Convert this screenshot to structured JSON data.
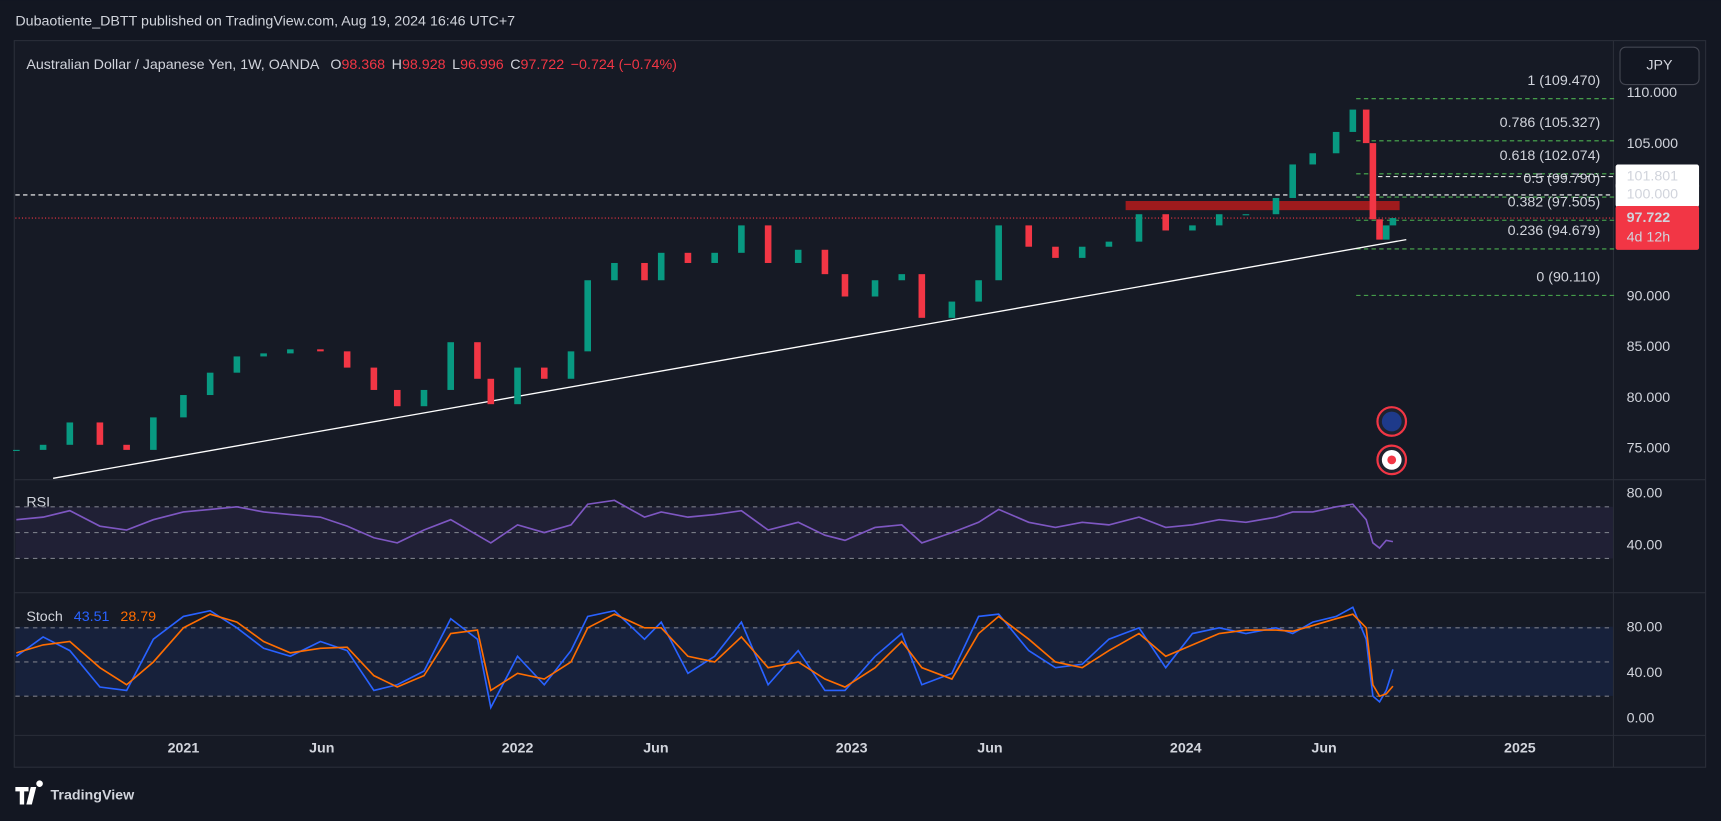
{
  "chart_data": {
    "type": "candlestick",
    "publisher": "Dubaotiente_DBTT published on TradingView.com, Aug 19, 2024 16:46 UTC+7",
    "title": "Australian Dollar / Japanese Yen, 1W, OANDA",
    "ohlc": [
      {
        "label": "O",
        "value": 98.368
      },
      {
        "label": "H",
        "value": 98.928
      },
      {
        "label": "L",
        "value": 96.996
      },
      {
        "label": "C",
        "value": 97.722
      }
    ],
    "change": "−0.724 (−0.74%)",
    "currency": "JPY",
    "brand": "TradingView",
    "x": [
      2020.5,
      2020.58,
      2020.66,
      2020.75,
      2020.83,
      2020.91,
      2021.0,
      2021.08,
      2021.16,
      2021.24,
      2021.32,
      2021.41,
      2021.49,
      2021.57,
      2021.64,
      2021.72,
      2021.8,
      2021.88,
      2021.92,
      2022.0,
      2022.08,
      2022.16,
      2022.21,
      2022.29,
      2022.38,
      2022.43,
      2022.51,
      2022.59,
      2022.67,
      2022.75,
      2022.84,
      2022.92,
      2022.98,
      2023.07,
      2023.15,
      2023.21,
      2023.3,
      2023.38,
      2023.44,
      2023.53,
      2023.61,
      2023.69,
      2023.77,
      2023.86,
      2023.94,
      2024.02,
      2024.1,
      2024.18,
      2024.27,
      2024.32,
      2024.38,
      2024.45,
      2024.5,
      2024.54,
      2024.56,
      2024.58,
      2024.6,
      2024.62
    ],
    "close": [
      74.9,
      75.4,
      77.6,
      75.4,
      74.9,
      78.1,
      80.3,
      82.5,
      84.1,
      84.4,
      84.8,
      84.6,
      83.0,
      80.8,
      79.2,
      80.8,
      85.5,
      81.9,
      79.4,
      83.0,
      81.9,
      84.6,
      91.6,
      93.3,
      91.6,
      94.3,
      93.3,
      94.3,
      97.0,
      93.3,
      94.6,
      92.2,
      90.0,
      91.6,
      92.2,
      87.9,
      89.5,
      91.6,
      97.0,
      94.9,
      93.8,
      94.9,
      95.4,
      98.1,
      96.5,
      97.0,
      98.1,
      98.1,
      99.7,
      103.0,
      104.1,
      106.2,
      108.4,
      105.1,
      97.6,
      95.6,
      97.0,
      97.722
    ],
    "up_color": "#089981",
    "down_color": "#f23645",
    "xlim": [
      2020.497,
      2025.28
    ],
    "xticks": [
      {
        "value": 2021,
        "label": "2021"
      },
      {
        "value": 2021.414,
        "label": "Jun"
      },
      {
        "value": 2022,
        "label": "2022"
      },
      {
        "value": 2022.414,
        "label": "Jun"
      },
      {
        "value": 2023,
        "label": "2023"
      },
      {
        "value": 2023.414,
        "label": "Jun"
      },
      {
        "value": 2024,
        "label": "2024"
      },
      {
        "value": 2024.414,
        "label": "Jun"
      },
      {
        "value": 2025,
        "label": "2025"
      }
    ],
    "ylim": [
      71.97,
      115.19
    ],
    "yticks": [
      {
        "value": 75,
        "label": "75.000"
      },
      {
        "value": 80,
        "label": "80.000"
      },
      {
        "value": 85,
        "label": "85.000"
      },
      {
        "value": 90,
        "label": "90.000"
      },
      {
        "value": 95,
        "label": "95.000"
      },
      {
        "value": 100,
        "label": "100.000"
      },
      {
        "value": 105,
        "label": "105.000"
      },
      {
        "value": 110,
        "label": "110.000"
      }
    ],
    "fib": [
      {
        "value": 109.47,
        "label": "1 (109.470)"
      },
      {
        "value": 105.327,
        "label": "0.786 (105.327)"
      },
      {
        "value": 102.074,
        "label": "0.618 (102.074)"
      },
      {
        "value": 99.79,
        "label": "0.5 (99.790)"
      },
      {
        "value": 97.505,
        "label": "0.382 (97.505)"
      },
      {
        "value": 94.679,
        "label": "0.236 (94.679)"
      },
      {
        "value": 90.11,
        "label": "0 (90.110)"
      }
    ],
    "fib_color": "#4caf50",
    "fib_x": [
      2024.51,
      2025.29
    ],
    "levels": [
      {
        "value": 101.801,
        "label": "101.801"
      },
      {
        "value": 100,
        "label": "100.000"
      }
    ],
    "countdown": "4d 12h",
    "trendline": {
      "x": [
        2020.61,
        2024.66
      ],
      "y": [
        72.1,
        95.6
      ]
    },
    "zone": {
      "x": [
        2023.82,
        2024.64
      ],
      "y": [
        98.5,
        99.4
      ],
      "color": "#b71c1c"
    },
    "rsi": {
      "type": "line",
      "name": "RSI",
      "color": "#7e57c2",
      "values": [
        60,
        62,
        67,
        55,
        52,
        60,
        66,
        68,
        70,
        66,
        64,
        62,
        55,
        46,
        42,
        52,
        60,
        48,
        42,
        56,
        50,
        56,
        72,
        75,
        62,
        66,
        62,
        64,
        67,
        52,
        58,
        48,
        44,
        54,
        56,
        42,
        50,
        58,
        68,
        58,
        54,
        58,
        56,
        62,
        54,
        56,
        60,
        58,
        62,
        66,
        66,
        70,
        72,
        60,
        42,
        38,
        44,
        43
      ],
      "ylim": [
        3.4,
        91.06
      ],
      "yticks": [
        {
          "value": 80,
          "label": "80.00"
        },
        {
          "value": 40,
          "label": "40.00"
        }
      ],
      "bands": [
        30,
        50,
        70
      ]
    },
    "stoch": {
      "type": "line",
      "name": "Stoch",
      "series": [
        {
          "color": "#2962ff",
          "values": [
            55,
            72,
            60,
            28,
            25,
            70,
            90,
            95,
            80,
            62,
            55,
            68,
            60,
            25,
            30,
            42,
            88,
            70,
            10,
            55,
            30,
            60,
            90,
            95,
            70,
            85,
            40,
            55,
            85,
            30,
            60,
            25,
            25,
            55,
            75,
            30,
            40,
            90,
            92,
            60,
            45,
            48,
            70,
            80,
            45,
            75,
            80,
            75,
            80,
            75,
            85,
            90,
            98,
            70,
            20,
            15,
            25,
            43.51
          ]
        },
        {
          "color": "#ff6d00",
          "values": [
            58,
            65,
            68,
            45,
            30,
            50,
            80,
            92,
            85,
            68,
            58,
            62,
            63,
            38,
            28,
            38,
            75,
            78,
            25,
            40,
            35,
            50,
            80,
            92,
            80,
            80,
            55,
            50,
            72,
            45,
            50,
            35,
            28,
            45,
            68,
            45,
            35,
            75,
            90,
            70,
            50,
            45,
            60,
            75,
            55,
            65,
            75,
            78,
            78,
            77,
            82,
            88,
            92,
            80,
            30,
            20,
            22,
            28.79
          ]
        }
      ],
      "ylim": [
        -14.46,
        110.84
      ],
      "yticks": [
        {
          "value": 80,
          "label": "80.00"
        },
        {
          "value": 40,
          "label": "40.00"
        },
        {
          "value": 0,
          "label": "0.00"
        }
      ],
      "bands": [
        20,
        50,
        80
      ]
    }
  }
}
